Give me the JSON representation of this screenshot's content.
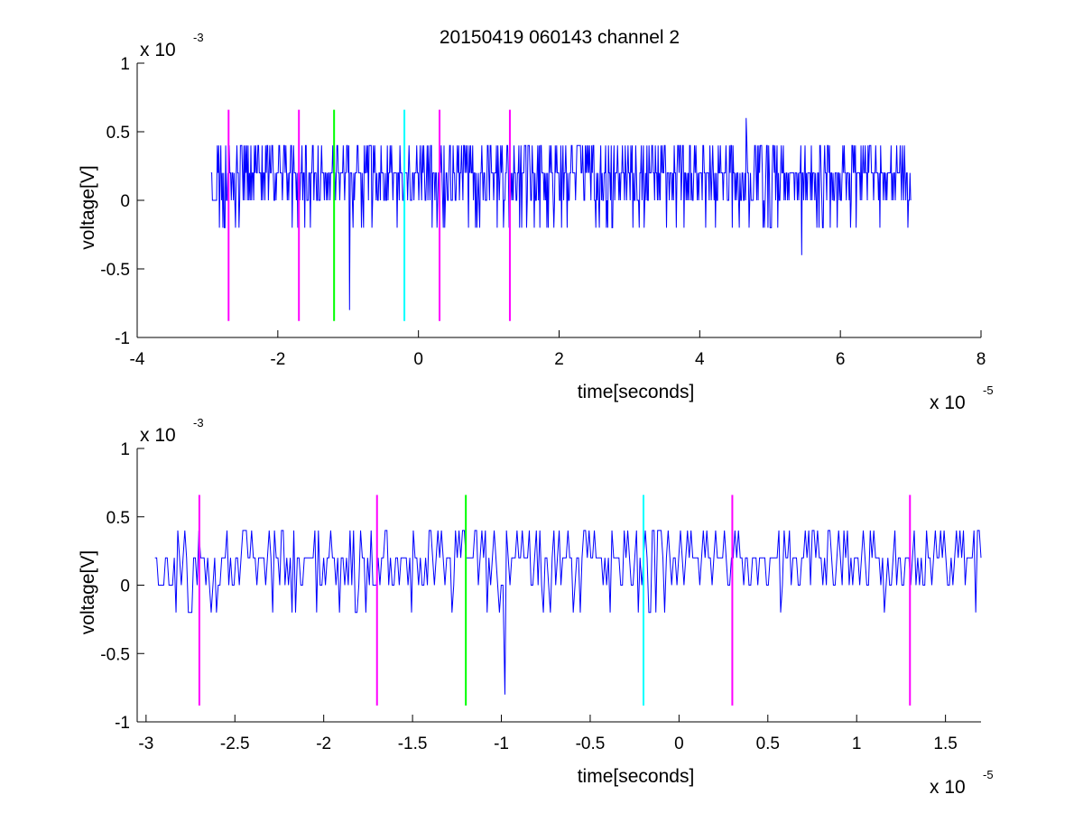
{
  "figure": {
    "title": "20150419 060143 channel 2"
  },
  "colors": {
    "signal": "#0000ff",
    "marker_magenta": "#ff00ff",
    "marker_green": "#00ff00",
    "marker_cyan": "#00ffff",
    "axes": "#000000"
  },
  "chart_data": [
    {
      "type": "line",
      "xlabel": "time[seconds]",
      "ylabel": "voltage[V]",
      "x_scale_label": "x 10",
      "x_scale_exp": "-5",
      "y_scale_label": "x 10",
      "y_scale_exp": "-3",
      "xlim": [
        -4,
        8
      ],
      "ylim": [
        -1,
        1
      ],
      "xticks": [
        -4,
        -2,
        0,
        2,
        4,
        6,
        8
      ],
      "xtick_labels": [
        "-4",
        "-2",
        "0",
        "2",
        "4",
        "6",
        "8"
      ],
      "yticks": [
        1,
        0.5,
        0,
        -0.5,
        -1
      ],
      "ytick_labels": [
        "1",
        "0.5",
        "0",
        "-0.5",
        "-1"
      ],
      "grid": false,
      "signal": {
        "x_range": [
          -2.95,
          7.0
        ],
        "levels": [
          -0.4,
          -0.2,
          0,
          0.2,
          0.4,
          0.6
        ],
        "dominant_level": 0.2,
        "approx_samples": 1000,
        "spikes": [
          {
            "x": -0.98,
            "y": -0.8
          },
          {
            "x": 4.66,
            "y": 0.6
          },
          {
            "x": 5.45,
            "y": -0.4
          }
        ]
      },
      "markers": [
        {
          "x": -2.7,
          "color": "magenta",
          "ymin": -0.88,
          "ymax": 0.66
        },
        {
          "x": -1.7,
          "color": "magenta",
          "ymin": -0.88,
          "ymax": 0.66
        },
        {
          "x": -1.2,
          "color": "green",
          "ymin": -0.88,
          "ymax": 0.66
        },
        {
          "x": -0.2,
          "color": "cyan",
          "ymin": -0.88,
          "ymax": 0.66
        },
        {
          "x": 0.3,
          "color": "magenta",
          "ymin": -0.88,
          "ymax": 0.66
        },
        {
          "x": 1.3,
          "color": "magenta",
          "ymin": -0.88,
          "ymax": 0.66
        }
      ]
    },
    {
      "type": "line",
      "xlabel": "time[seconds]",
      "ylabel": "voltage[V]",
      "x_scale_label": "x 10",
      "x_scale_exp": "-5",
      "y_scale_label": "x 10",
      "y_scale_exp": "-3",
      "xlim": [
        -3.05,
        1.7
      ],
      "ylim": [
        -1,
        1
      ],
      "xticks": [
        -3,
        -2.5,
        -2,
        -1.5,
        -1,
        -0.5,
        0,
        0.5,
        1,
        1.5
      ],
      "xtick_labels": [
        "-3",
        "-2.5",
        "-2",
        "-1.5",
        "-1",
        "-0.5",
        "0",
        "0.5",
        "1",
        "1.5"
      ],
      "yticks": [
        1,
        0.5,
        0,
        -0.5,
        -1
      ],
      "ytick_labels": [
        "1",
        "0.5",
        "0",
        "-0.5",
        "-1"
      ],
      "grid": false,
      "signal": {
        "x_range": [
          -2.95,
          1.7
        ],
        "levels": [
          -0.2,
          0,
          0.2,
          0.4
        ],
        "dominant_level": 0.2,
        "approx_samples": 470,
        "spikes": [
          {
            "x": -0.98,
            "y": -0.8
          }
        ]
      },
      "markers": [
        {
          "x": -2.7,
          "color": "magenta",
          "ymin": -0.88,
          "ymax": 0.66
        },
        {
          "x": -1.7,
          "color": "magenta",
          "ymin": -0.88,
          "ymax": 0.66
        },
        {
          "x": -1.2,
          "color": "green",
          "ymin": -0.88,
          "ymax": 0.66
        },
        {
          "x": -0.2,
          "color": "cyan",
          "ymin": -0.88,
          "ymax": 0.66
        },
        {
          "x": 0.3,
          "color": "magenta",
          "ymin": -0.88,
          "ymax": 0.66
        },
        {
          "x": 1.3,
          "color": "magenta",
          "ymin": -0.88,
          "ymax": 0.66
        }
      ]
    }
  ]
}
